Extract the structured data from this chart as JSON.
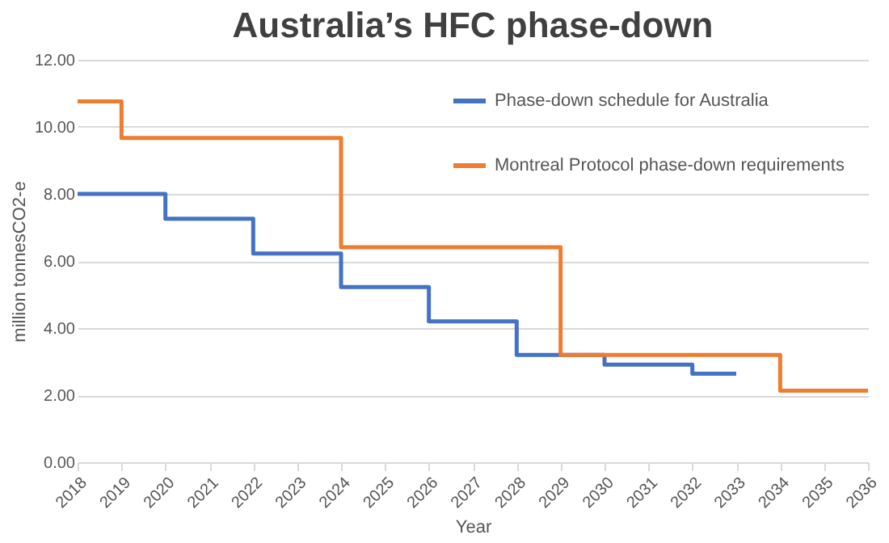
{
  "chart_data": {
    "type": "step",
    "title": "Australia’s HFC phase-down",
    "xlabel": "Year",
    "ylabel": "million tonnesCO2-e",
    "categories": [
      "2018",
      "2019",
      "2020",
      "2021",
      "2022",
      "2023",
      "2024",
      "2025",
      "2026",
      "2027",
      "2028",
      "2029",
      "2030",
      "2031",
      "2032",
      "2033",
      "2034",
      "2035",
      "2036"
    ],
    "series": [
      {
        "name": "Phase-down schedule for Australia",
        "color": "#4472c4",
        "values": [
          8.0,
          8.0,
          7.26,
          7.26,
          6.22,
          6.22,
          5.22,
          5.22,
          4.2,
          4.2,
          3.2,
          3.2,
          2.91,
          2.91,
          2.64,
          2.64,
          null,
          null,
          null
        ]
      },
      {
        "name": "Montreal Protocol phase-down requirements",
        "color": "#ed7d31",
        "values": [
          10.76,
          9.67,
          9.67,
          9.67,
          9.67,
          9.67,
          6.41,
          6.41,
          6.41,
          6.41,
          6.41,
          3.2,
          3.2,
          3.2,
          3.2,
          3.2,
          2.13,
          2.13,
          2.13
        ]
      }
    ],
    "ylim": [
      0,
      12
    ],
    "yticks": [
      {
        "value": 0,
        "label": "0.00"
      },
      {
        "value": 2,
        "label": "2.00"
      },
      {
        "value": 4,
        "label": "4.00"
      },
      {
        "value": 6,
        "label": "6.00"
      },
      {
        "value": 8,
        "label": "8.00"
      },
      {
        "value": 10,
        "label": "10.00"
      },
      {
        "value": 12,
        "label": "12.00"
      }
    ],
    "grid": "y",
    "legend": "top right",
    "line_style": "solid",
    "marker": "none"
  }
}
